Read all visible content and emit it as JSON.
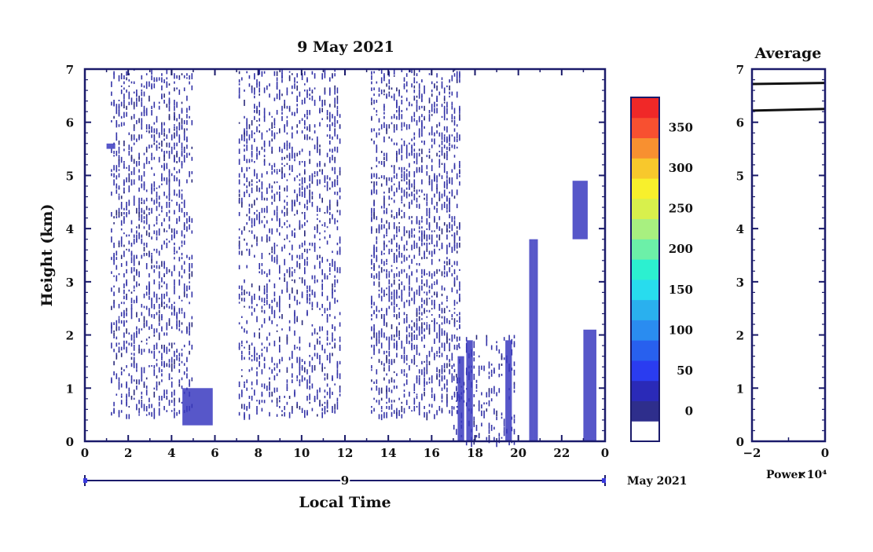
{
  "chart_data": [
    {
      "type": "heatmap",
      "title": "9 May 2021",
      "xlabel": "Local Time",
      "ylabel": "Height (km)",
      "xlim": [
        0,
        24
      ],
      "ylim": [
        0,
        7
      ],
      "x_ticks": [
        "0",
        "2",
        "4",
        "6",
        "8",
        "10",
        "12",
        "14",
        "16",
        "18",
        "20",
        "22",
        "0"
      ],
      "y_ticks": [
        "0",
        "1",
        "2",
        "3",
        "4",
        "5",
        "6",
        "7"
      ],
      "date_bar_label": "9",
      "month_label": "May 2021",
      "colorbar": {
        "levels": [
          0,
          25,
          50,
          75,
          100,
          125,
          150,
          175,
          200,
          225,
          250,
          275,
          300,
          325,
          350,
          375
        ],
        "tick_labels": [
          "0",
          "50",
          "100",
          "150",
          "200",
          "250",
          "300",
          "350"
        ],
        "colors": [
          "#ffffff",
          "#2e2e8c",
          "#2a2ab8",
          "#2a3cf0",
          "#2860ee",
          "#2a8cf0",
          "#2ab0ee",
          "#28dcee",
          "#2cf0d0",
          "#6cf0a8",
          "#a8f080",
          "#d8f04c",
          "#f8f02c",
          "#f8c82c",
          "#f89030",
          "#f85030",
          "#f02828"
        ]
      },
      "regions": [
        {
          "x": [
            1.2,
            5.0
          ],
          "y": [
            0.5,
            7.0
          ],
          "density": 0.55
        },
        {
          "x": [
            7.1,
            11.8
          ],
          "y": [
            0.5,
            7.0
          ],
          "density": 0.45
        },
        {
          "x": [
            13.2,
            17.3
          ],
          "y": [
            0.5,
            7.0
          ],
          "density": 0.62
        },
        {
          "x": [
            17.0,
            19.8
          ],
          "y": [
            0.0,
            2.0
          ],
          "density": 0.35
        }
      ],
      "strong_echoes": [
        {
          "x": [
            17.2,
            17.5
          ],
          "y": [
            0.0,
            1.6
          ]
        },
        {
          "x": [
            17.6,
            17.9
          ],
          "y": [
            0.0,
            1.9
          ]
        },
        {
          "x": [
            19.4,
            19.7
          ],
          "y": [
            0.0,
            1.9
          ]
        },
        {
          "x": [
            20.5,
            20.7
          ],
          "y": [
            0.0,
            3.8
          ]
        },
        {
          "x": [
            20.7,
            20.9
          ],
          "y": [
            0.0,
            3.8
          ]
        },
        {
          "x": [
            22.5,
            23.2
          ],
          "y": [
            3.8,
            4.9
          ]
        },
        {
          "x": [
            23.0,
            23.6
          ],
          "y": [
            0.0,
            2.1
          ]
        },
        {
          "x": [
            4.5,
            5.9
          ],
          "y": [
            0.3,
            1.0
          ]
        },
        {
          "x": [
            1.0,
            1.4
          ],
          "y": [
            5.5,
            5.6
          ]
        }
      ]
    },
    {
      "type": "line",
      "title": "Average",
      "xlabel": "Power",
      "x_scale_label": "×10⁴",
      "xlim": [
        -2,
        0
      ],
      "ylim": [
        0,
        7
      ],
      "x_ticks": [
        "−2",
        "0"
      ],
      "y_ticks": [
        "0",
        "1",
        "2",
        "3",
        "4",
        "5",
        "6",
        "7"
      ],
      "series": [
        {
          "x": [
            -2.0,
            0.0
          ],
          "y": [
            6.72,
            6.74
          ]
        },
        {
          "x": [
            -2.0,
            0.0
          ],
          "y": [
            6.22,
            6.25
          ]
        }
      ]
    }
  ]
}
